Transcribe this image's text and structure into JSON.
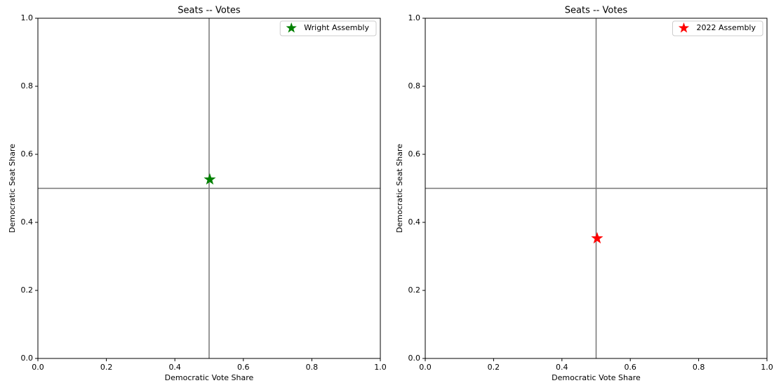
{
  "chart_data": [
    {
      "type": "scatter",
      "title": "Seats -- Votes",
      "xlabel": "Democratic Vote Share",
      "ylabel": "Democratic Seat Share",
      "xlim": [
        0,
        1
      ],
      "ylim": [
        0,
        1
      ],
      "xticks": [
        {
          "value": 0,
          "label": "0.0"
        },
        {
          "value": 0.2,
          "label": "0.2"
        },
        {
          "value": 0.4,
          "label": "0.4"
        },
        {
          "value": 0.6,
          "label": "0.6"
        },
        {
          "value": 0.8,
          "label": "0.8"
        },
        {
          "value": 1,
          "label": "1.0"
        }
      ],
      "yticks": [
        {
          "value": 0,
          "label": "0.0"
        },
        {
          "value": 0.2,
          "label": "0.2"
        },
        {
          "value": 0.4,
          "label": "0.4"
        },
        {
          "value": 0.6,
          "label": "0.6"
        },
        {
          "value": 0.8,
          "label": "0.8"
        },
        {
          "value": 1,
          "label": "1.0"
        }
      ],
      "hline": 0.5,
      "vline": 0.5,
      "legend": "upper right",
      "series": [
        {
          "name": "Wright Assembly",
          "color": "#008000",
          "marker": "star",
          "x": [
            0.502
          ],
          "y": [
            0.526
          ]
        }
      ]
    },
    {
      "type": "scatter",
      "title": "Seats -- Votes",
      "xlabel": "Democratic Vote Share",
      "ylabel": "Democratic Seat Share",
      "xlim": [
        0,
        1
      ],
      "ylim": [
        0,
        1
      ],
      "xticks": [
        {
          "value": 0,
          "label": "0.0"
        },
        {
          "value": 0.2,
          "label": "0.2"
        },
        {
          "value": 0.4,
          "label": "0.4"
        },
        {
          "value": 0.6,
          "label": "0.6"
        },
        {
          "value": 0.8,
          "label": "0.8"
        },
        {
          "value": 1,
          "label": "1.0"
        }
      ],
      "yticks": [
        {
          "value": 0,
          "label": "0.0"
        },
        {
          "value": 0.2,
          "label": "0.2"
        },
        {
          "value": 0.4,
          "label": "0.4"
        },
        {
          "value": 0.6,
          "label": "0.6"
        },
        {
          "value": 0.8,
          "label": "0.8"
        },
        {
          "value": 1,
          "label": "1.0"
        }
      ],
      "hline": 0.5,
      "vline": 0.5,
      "legend": "upper right",
      "series": [
        {
          "name": "2022 Assembly",
          "color": "#ff0000",
          "marker": "star",
          "x": [
            0.503
          ],
          "y": [
            0.353
          ]
        }
      ]
    }
  ]
}
